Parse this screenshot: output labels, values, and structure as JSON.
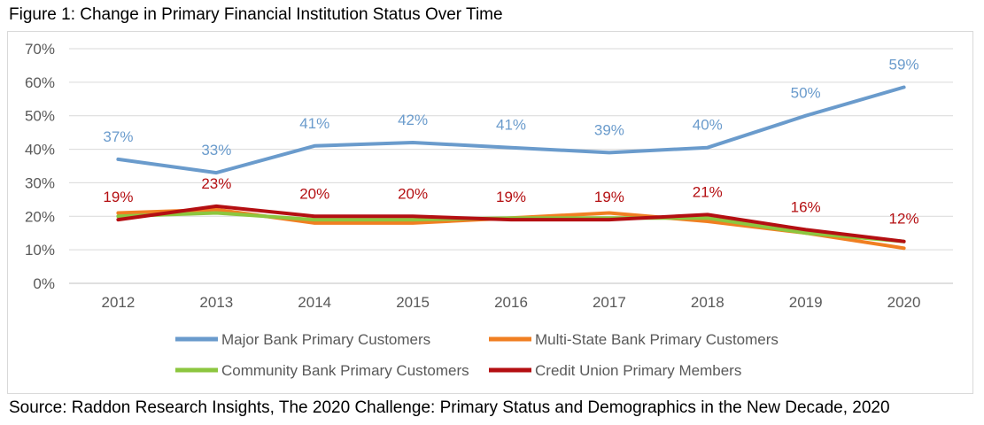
{
  "figure_title": "Figure 1: Change in Primary Financial Institution Status Over Time",
  "source": "Source: Raddon Research Insights, The 2020 Challenge: Primary Status and Demographics in the New Decade, 2020",
  "chart_data": {
    "type": "line",
    "title": "",
    "xlabel": "",
    "ylabel": "",
    "x": [
      "2012",
      "2013",
      "2014",
      "2015",
      "2016",
      "2017",
      "2018",
      "2019",
      "2020"
    ],
    "ylim": [
      0,
      70
    ],
    "y_ticks": [
      "0%",
      "10%",
      "20%",
      "30%",
      "40%",
      "50%",
      "60%",
      "70%"
    ],
    "grid": true,
    "legend_position": "bottom",
    "series": [
      {
        "name": "Major Bank Primary Customers",
        "color": "#6a9bcc",
        "values": [
          37,
          33,
          41,
          42,
          40.5,
          39,
          40.5,
          50,
          58.5
        ],
        "labels": [
          "37%",
          "33%",
          "41%",
          "42%",
          "41%",
          "39%",
          "40%",
          "50%",
          "59%"
        ]
      },
      {
        "name": "Multi-State Bank Primary Customers",
        "color": "#f07f22",
        "values": [
          21,
          22,
          18,
          18,
          19.5,
          21,
          18.5,
          15,
          10.5
        ],
        "labels": []
      },
      {
        "name": "Community Bank Primary Customers",
        "color": "#8cc63f",
        "values": [
          20,
          21,
          19,
          19,
          19.5,
          19.5,
          19.5,
          15,
          12.5
        ],
        "labels": []
      },
      {
        "name": "Credit Union Primary Members",
        "color": "#b40f12",
        "values": [
          19,
          23,
          20,
          20,
          19,
          19,
          20.5,
          16,
          12.5
        ],
        "labels": [
          "19%",
          "23%",
          "20%",
          "20%",
          "19%",
          "19%",
          "21%",
          "16%",
          "12%"
        ]
      }
    ]
  }
}
